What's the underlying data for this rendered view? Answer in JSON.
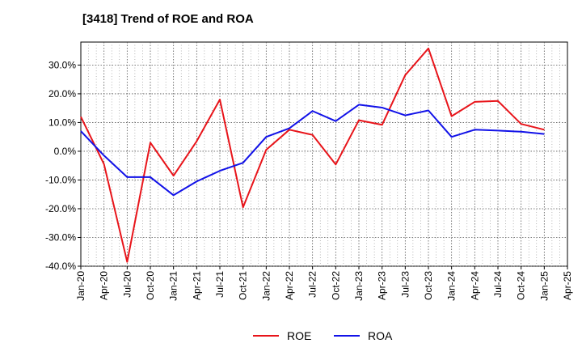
{
  "chart_data": {
    "type": "line",
    "title": "[3418]  Trend of ROE and ROA",
    "xlabel": "",
    "ylabel": "",
    "x_ticks": [
      "Jan-20",
      "Apr-20",
      "Jul-20",
      "Oct-20",
      "Jan-21",
      "Apr-21",
      "Jul-21",
      "Oct-21",
      "Jan-22",
      "Apr-22",
      "Jul-22",
      "Oct-22",
      "Jan-23",
      "Apr-23",
      "Jul-23",
      "Oct-23",
      "Jan-24",
      "Apr-24",
      "Jul-24",
      "Oct-24",
      "Jan-25",
      "Apr-25"
    ],
    "y_ticks": [
      30,
      20,
      10,
      0,
      -10,
      -20,
      -30,
      -40
    ],
    "y_tick_labels": [
      "30.0%",
      "20.0%",
      "10.0%",
      "0.0%",
      "-10.0%",
      "-20.0%",
      "-30.0%",
      "-40.0%"
    ],
    "ylim": [
      -40,
      38
    ],
    "grid": true,
    "legend_position": "bottom-center",
    "series": [
      {
        "name": "ROE",
        "color": "#e8141a",
        "x": [
          "Jan-20",
          "Apr-20",
          "Jul-20",
          "Oct-20",
          "Jan-21",
          "Apr-21",
          "Jul-21",
          "Oct-21",
          "Jan-22",
          "Apr-22",
          "Jul-22",
          "Oct-22",
          "Jan-23",
          "Apr-23",
          "Jul-23",
          "Oct-23",
          "Jan-24",
          "Apr-24",
          "Jul-24",
          "Oct-24",
          "Jan-25"
        ],
        "values": [
          12.0,
          -4.5,
          -38.5,
          3.0,
          -8.5,
          3.5,
          18.0,
          -19.5,
          0.5,
          7.5,
          5.7,
          -4.6,
          10.8,
          9.2,
          26.5,
          35.8,
          12.2,
          17.2,
          17.5,
          9.5,
          7.5
        ]
      },
      {
        "name": "ROA",
        "color": "#1212e8",
        "x": [
          "Jan-20",
          "Apr-20",
          "Jul-20",
          "Oct-20",
          "Jan-21",
          "Apr-21",
          "Jul-21",
          "Oct-21",
          "Jan-22",
          "Apr-22",
          "Jul-22",
          "Oct-22",
          "Jan-23",
          "Apr-23",
          "Jul-23",
          "Oct-23",
          "Jan-24",
          "Apr-24",
          "Jul-24",
          "Oct-24",
          "Jan-25"
        ],
        "values": [
          7.0,
          -1.5,
          -9.0,
          -9.0,
          -15.3,
          -10.5,
          -6.8,
          -4.0,
          5.0,
          8.0,
          14.0,
          10.5,
          16.2,
          15.2,
          12.5,
          14.2,
          5.0,
          7.5,
          7.2,
          6.8,
          6.0
        ]
      }
    ]
  }
}
